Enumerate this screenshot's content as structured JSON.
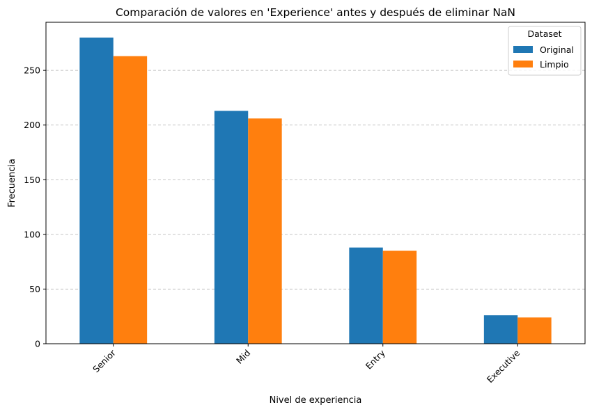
{
  "chart_data": {
    "type": "bar",
    "title": "Comparación de valores en 'Experience' antes y después de eliminar NaN",
    "xlabel": "Nivel de experiencia",
    "ylabel": "Frecuencia",
    "categories": [
      "Senior",
      "Mid",
      "Entry",
      "Executive"
    ],
    "series": [
      {
        "name": "Original",
        "values": [
          280,
          213,
          88,
          26
        ],
        "color": "#1f77b4"
      },
      {
        "name": "Limpio",
        "values": [
          263,
          206,
          85,
          24
        ],
        "color": "#ff7f0e"
      }
    ],
    "ylim": [
      0,
      294
    ],
    "yticks": [
      0,
      50,
      100,
      150,
      200,
      250
    ],
    "grid": "y-dashed",
    "legend": {
      "title": "Dataset",
      "placement": "top-right"
    }
  }
}
